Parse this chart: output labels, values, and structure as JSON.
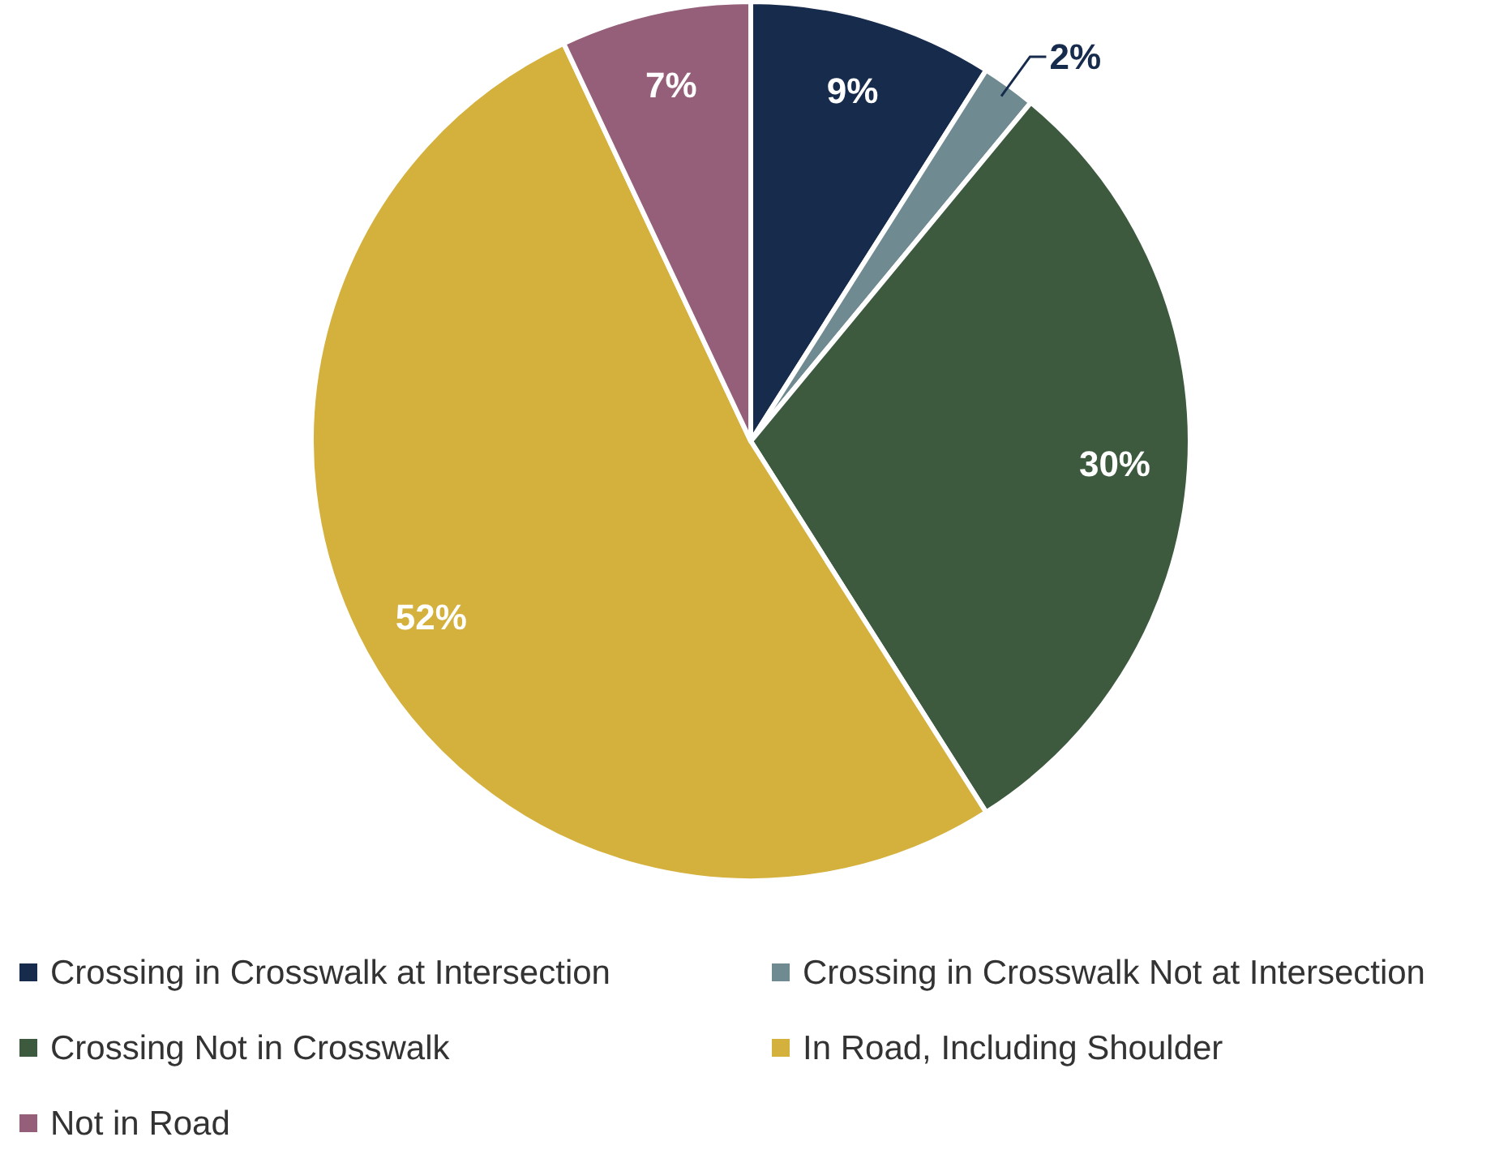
{
  "chart_data": {
    "type": "pie",
    "categories": [
      "Crossing in Crosswalk at Intersection",
      "Crossing in Crosswalk Not at Intersection",
      "Crossing Not in Crosswalk",
      "In Road, Including Shoulder",
      "Not in Road"
    ],
    "values": [
      9,
      2,
      30,
      52,
      7
    ],
    "colors": [
      "#172b4d",
      "#6f8a91",
      "#3d5a3e",
      "#d4b03c",
      "#955f7a"
    ],
    "value_labels": [
      "9%",
      "2%",
      "30%",
      "52%",
      "7%"
    ],
    "legend": "bottom"
  }
}
